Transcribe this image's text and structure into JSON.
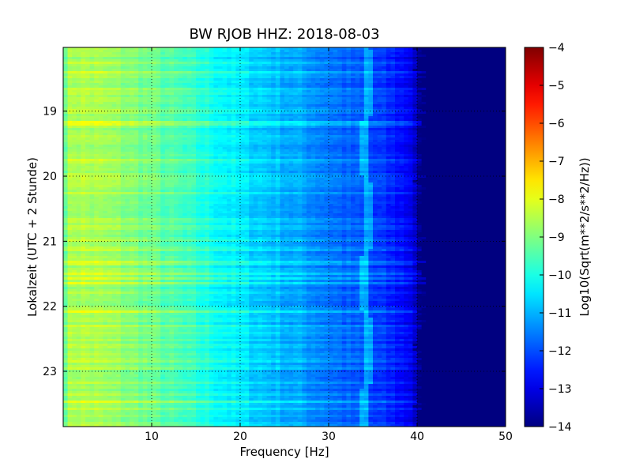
{
  "chart_data": {
    "type": "heatmap",
    "title": "BW RJOB HHZ: 2018-08-03",
    "xlabel": "Frequency [Hz]",
    "ylabel": "Lokalzeit (UTC + 2 Stunde)",
    "xlim": [
      0,
      50
    ],
    "ylim": [
      18.02,
      23.85
    ],
    "y_inverted": true,
    "x_ticks": [
      10,
      20,
      30,
      40,
      50
    ],
    "y_ticks": [
      19,
      20,
      21,
      22,
      23
    ],
    "grid": true,
    "colormap": "jet",
    "colorbar": {
      "label": "Log10(Sqrt(m**2/s**2/Hz))",
      "range": [
        -14,
        -4
      ],
      "ticks": [
        -4,
        -5,
        -6,
        -7,
        -8,
        -9,
        -10,
        -11,
        -12,
        -13,
        -14
      ]
    },
    "features": {
      "line_frequency_hz": 34.3,
      "cutoff_frequency_hz": 40.2,
      "level_low_freq": -8.5,
      "level_high_freq": -14
    },
    "spectrum_profile": {
      "frequency_hz": [
        0,
        1,
        3,
        6,
        10,
        14,
        17,
        20,
        24,
        28,
        32,
        34,
        36,
        38,
        39.5,
        40.3,
        50
      ],
      "log10_amplitude": [
        -9.2,
        -8.5,
        -8.6,
        -8.8,
        -9.2,
        -9.7,
        -10.1,
        -10.5,
        -10.9,
        -11.3,
        -11.8,
        -12.0,
        -12.3,
        -12.6,
        -12.9,
        -14,
        -14
      ]
    }
  }
}
